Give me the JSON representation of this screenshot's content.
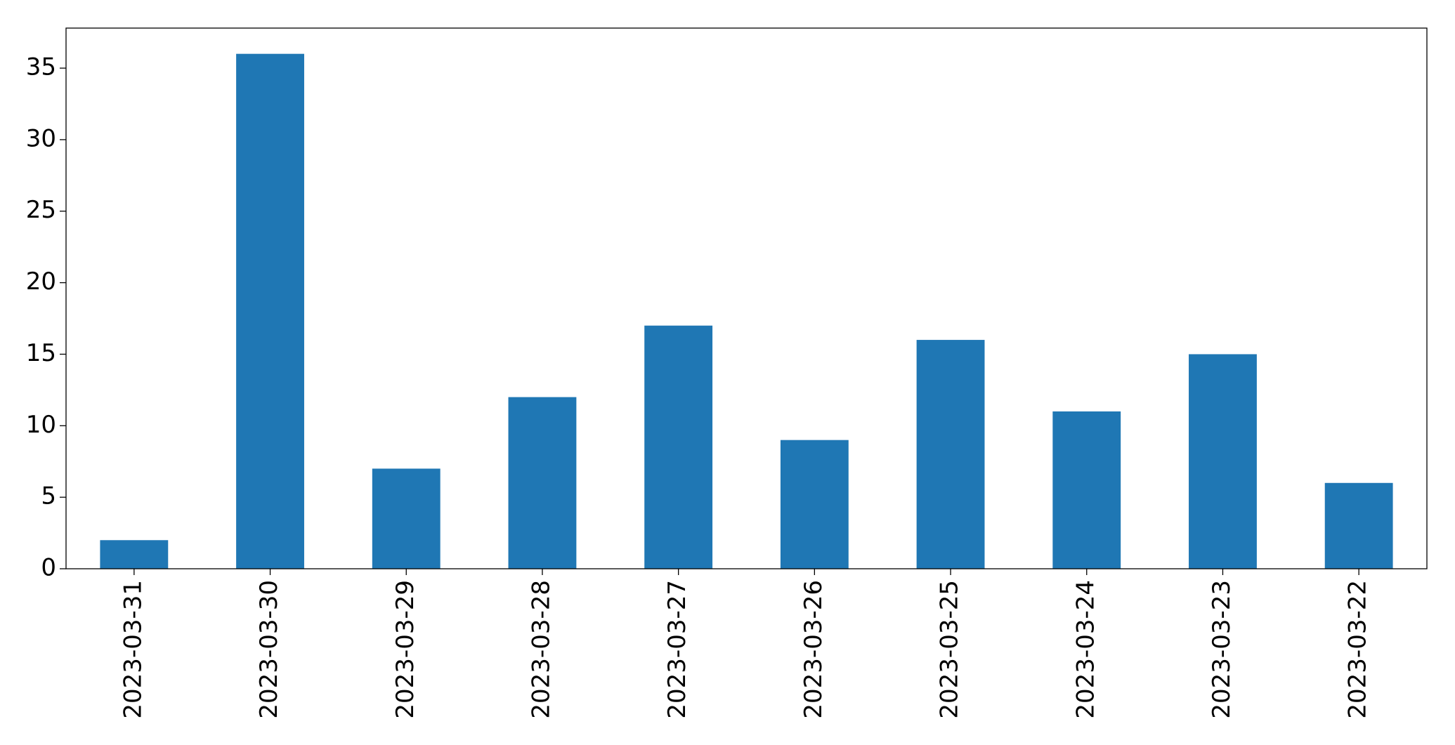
{
  "chart_data": {
    "type": "bar",
    "categories": [
      "2023-03-31",
      "2023-03-30",
      "2023-03-29",
      "2023-03-28",
      "2023-03-27",
      "2023-03-26",
      "2023-03-25",
      "2023-03-24",
      "2023-03-23",
      "2023-03-22"
    ],
    "values": [
      2,
      36,
      7,
      12,
      17,
      9,
      16,
      11,
      15,
      6
    ],
    "color": "#1f77b4",
    "ylim": [
      0,
      37.8
    ],
    "yticks": [
      0,
      5,
      10,
      15,
      20,
      25,
      30,
      35
    ],
    "grid": false
  }
}
